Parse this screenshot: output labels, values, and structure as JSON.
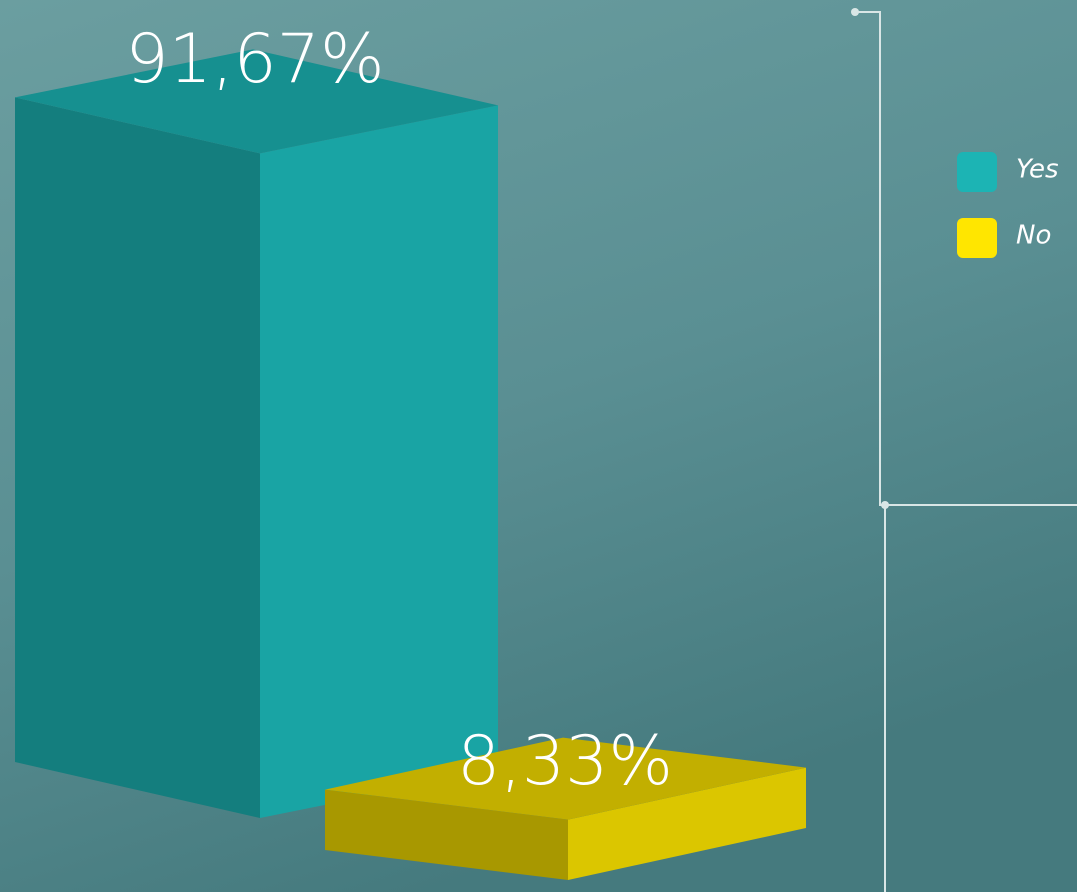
{
  "chart_data": {
    "type": "bar3d",
    "categories": [
      null
    ],
    "series": [
      {
        "name": "Yes",
        "color": "#1cb4b4",
        "values": [
          91.67
        ],
        "value_labels": [
          "91,67%"
        ]
      },
      {
        "name": "No",
        "color": "#ffe600",
        "values": [
          8.33
        ],
        "value_labels": [
          "8,33%"
        ]
      }
    ]
  }
}
